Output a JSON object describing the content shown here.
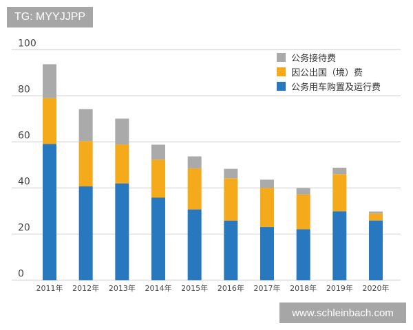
{
  "chart_data": {
    "type": "bar",
    "stacked": true,
    "categories": [
      "2011年",
      "2012年",
      "2013年",
      "2014年",
      "2015年",
      "2016年",
      "2017年",
      "2018年",
      "2019年",
      "2020年"
    ],
    "series": [
      {
        "name": "公务用车购置及运行费",
        "color": "#2778bf",
        "values": [
          59.1,
          40.7,
          42.0,
          35.8,
          30.7,
          25.8,
          23.1,
          22.1,
          29.9,
          25.9
        ]
      },
      {
        "name": "因公出国（境）费",
        "color": "#f5aa1c",
        "values": [
          19.9,
          19.6,
          16.9,
          16.5,
          17.8,
          18.4,
          16.9,
          15.1,
          16.1,
          3.0
        ]
      },
      {
        "name": "公务接待费",
        "color": "#aaaaaa",
        "values": [
          14.7,
          13.9,
          11.2,
          6.5,
          5.2,
          4.1,
          3.6,
          2.8,
          2.8,
          0.9
        ]
      }
    ],
    "yticks": [
      "0",
      "20",
      "40",
      "60",
      "80",
      "100"
    ],
    "ylim": [
      0,
      100
    ],
    "grid": true,
    "legend_position": "top-right",
    "title": "",
    "xlabel": "",
    "ylabel": ""
  },
  "watermarks": {
    "top_left": "TG: MYYJJPP",
    "bottom_right": "www.schleinbach.com"
  }
}
